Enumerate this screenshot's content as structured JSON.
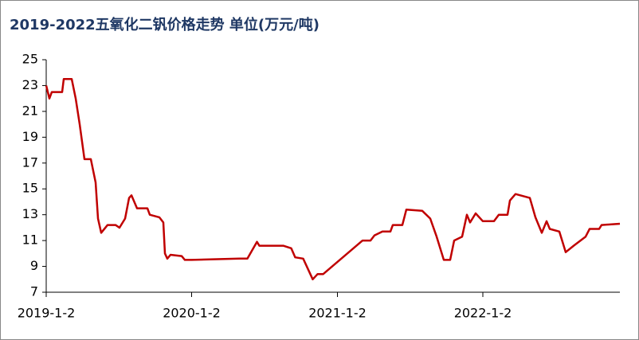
{
  "chart_data": {
    "type": "line",
    "title": "2019-2022五氧化二钒价格走势 单位(万元/吨)",
    "x": [
      "2019-1-2",
      "2019-1-10",
      "2019-1-16",
      "2019-2-11",
      "2019-2-15",
      "2019-3-7",
      "2019-3-17",
      "2019-3-27",
      "2019-4-8",
      "2019-4-24",
      "2019-5-6",
      "2019-5-12",
      "2019-5-20",
      "2019-6-5",
      "2019-6-25",
      "2019-7-5",
      "2019-7-19",
      "2019-7-29",
      "2019-8-4",
      "2019-8-18",
      "2019-9-13",
      "2019-9-19",
      "2019-10-13",
      "2019-10-23",
      "2019-10-27",
      "2019-11-2",
      "2019-11-10",
      "2019-12-8",
      "2019-12-16",
      "2020-1-2",
      "2020-5-1",
      "2020-5-21",
      "2020-6-14",
      "2020-6-20",
      "2020-8-19",
      "2020-9-8",
      "2020-9-18",
      "2020-10-8",
      "2020-11-1",
      "2020-11-13",
      "2020-11-27",
      "2021-3-6",
      "2021-3-26",
      "2021-4-5",
      "2021-4-25",
      "2021-5-15",
      "2021-5-21",
      "2021-6-14",
      "2021-6-24",
      "2021-8-3",
      "2021-8-23",
      "2021-9-8",
      "2021-9-26",
      "2021-10-12",
      "2021-10-22",
      "2021-11-11",
      "2021-11-23",
      "2021-12-1",
      "2021-12-15",
      "2022-1-2",
      "2022-1-30",
      "2022-2-11",
      "2022-3-5",
      "2022-3-11",
      "2022-3-25",
      "2022-4-30",
      "2022-5-14",
      "2022-5-30",
      "2022-6-11",
      "2022-6-19",
      "2022-7-13",
      "2022-7-29",
      "2022-8-18",
      "2022-9-17",
      "2022-9-27",
      "2022-10-21",
      "2022-10-27",
      "2022-12-12"
    ],
    "series": [
      {
        "color": "#c00000",
        "values": [
          23,
          22,
          22.5,
          22.5,
          23.5,
          23.5,
          22,
          20,
          17.3,
          17.3,
          15.5,
          12.7,
          11.6,
          12.2,
          12.2,
          12,
          12.7,
          14.3,
          14.5,
          13.5,
          13.5,
          13,
          12.8,
          12.4,
          10,
          9.6,
          9.9,
          9.8,
          9.5,
          9.5,
          9.6,
          9.6,
          10.9,
          10.6,
          10.6,
          10.4,
          9.7,
          9.6,
          8,
          8.4,
          8.4,
          11,
          11,
          11.4,
          11.7,
          11.7,
          12.2,
          12.2,
          13.4,
          13.3,
          12.7,
          11.3,
          9.5,
          9.5,
          11,
          11.3,
          13,
          12.4,
          13.1,
          12.5,
          12.5,
          13,
          13,
          14.1,
          14.6,
          14.3,
          12.8,
          11.6,
          12.5,
          11.9,
          11.7,
          10.1,
          10.6,
          11.3,
          11.9,
          11.9,
          12.2,
          12.3
        ]
      }
    ],
    "xlim": [
      "2019-1-2",
      "2022-12-12"
    ],
    "xticks": [
      "2019-1-2",
      "2020-1-2",
      "2021-1-2",
      "2022-1-2"
    ],
    "ylim": [
      7,
      25
    ],
    "yticks": [
      7,
      9,
      11,
      13,
      15,
      17,
      19,
      21,
      23,
      25
    ]
  }
}
